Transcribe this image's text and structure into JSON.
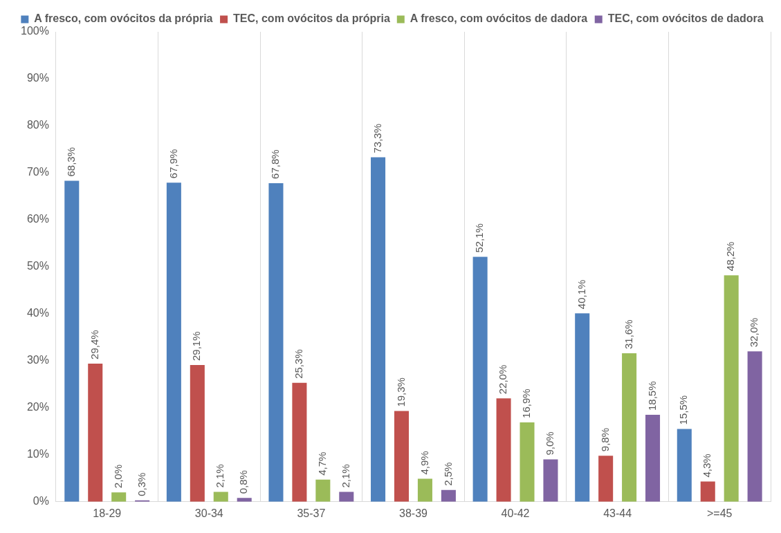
{
  "chart_data": {
    "type": "bar",
    "categories": [
      "18-29",
      "30-34",
      "35-37",
      "38-39",
      "40-42",
      "43-44",
      ">=45"
    ],
    "series": [
      {
        "name": "A fresco, com ovócitos da própria",
        "color": "#4f81bd",
        "values": [
          68.3,
          67.9,
          67.8,
          73.3,
          52.1,
          40.1,
          15.5
        ],
        "value_labels": [
          "68,3%",
          "67,9%",
          "67,8%",
          "73,3%",
          "52,1%",
          "40,1%",
          "15,5%"
        ]
      },
      {
        "name": "TEC, com ovócitos da própria",
        "color": "#c0504d",
        "values": [
          29.4,
          29.1,
          25.3,
          19.3,
          22.0,
          9.8,
          4.3
        ],
        "value_labels": [
          "29,4%",
          "29,1%",
          "25,3%",
          "19,3%",
          "22,0%",
          "9,8%",
          "4,3%"
        ]
      },
      {
        "name": "A fresco, com ovócitos de dadora",
        "color": "#9bbb59",
        "values": [
          2.0,
          2.1,
          4.7,
          4.9,
          16.9,
          31.6,
          48.2
        ],
        "value_labels": [
          "2,0%",
          "2,1%",
          "4,7%",
          "4,9%",
          "16,9%",
          "31,6%",
          "48,2%"
        ]
      },
      {
        "name": "TEC, com ovócitos de dadora",
        "color": "#8064a2",
        "values": [
          0.3,
          0.8,
          2.1,
          2.5,
          9.0,
          18.5,
          32.0
        ],
        "value_labels": [
          "0,3%",
          "0,8%",
          "2,1%",
          "2,5%",
          "9,0%",
          "18,5%",
          "32,0%"
        ]
      }
    ],
    "ylim": [
      0,
      100
    ],
    "yticks": [
      {
        "value": 0,
        "label": "0%"
      },
      {
        "value": 10,
        "label": "10%"
      },
      {
        "value": 20,
        "label": "20%"
      },
      {
        "value": 30,
        "label": "30%"
      },
      {
        "value": 40,
        "label": "40%"
      },
      {
        "value": 50,
        "label": "50%"
      },
      {
        "value": 60,
        "label": "60%"
      },
      {
        "value": 70,
        "label": "70%"
      },
      {
        "value": 80,
        "label": "80%"
      },
      {
        "value": 90,
        "label": "90%"
      },
      {
        "value": 100,
        "label": "100%"
      }
    ],
    "grid": "x",
    "legend": "top"
  }
}
